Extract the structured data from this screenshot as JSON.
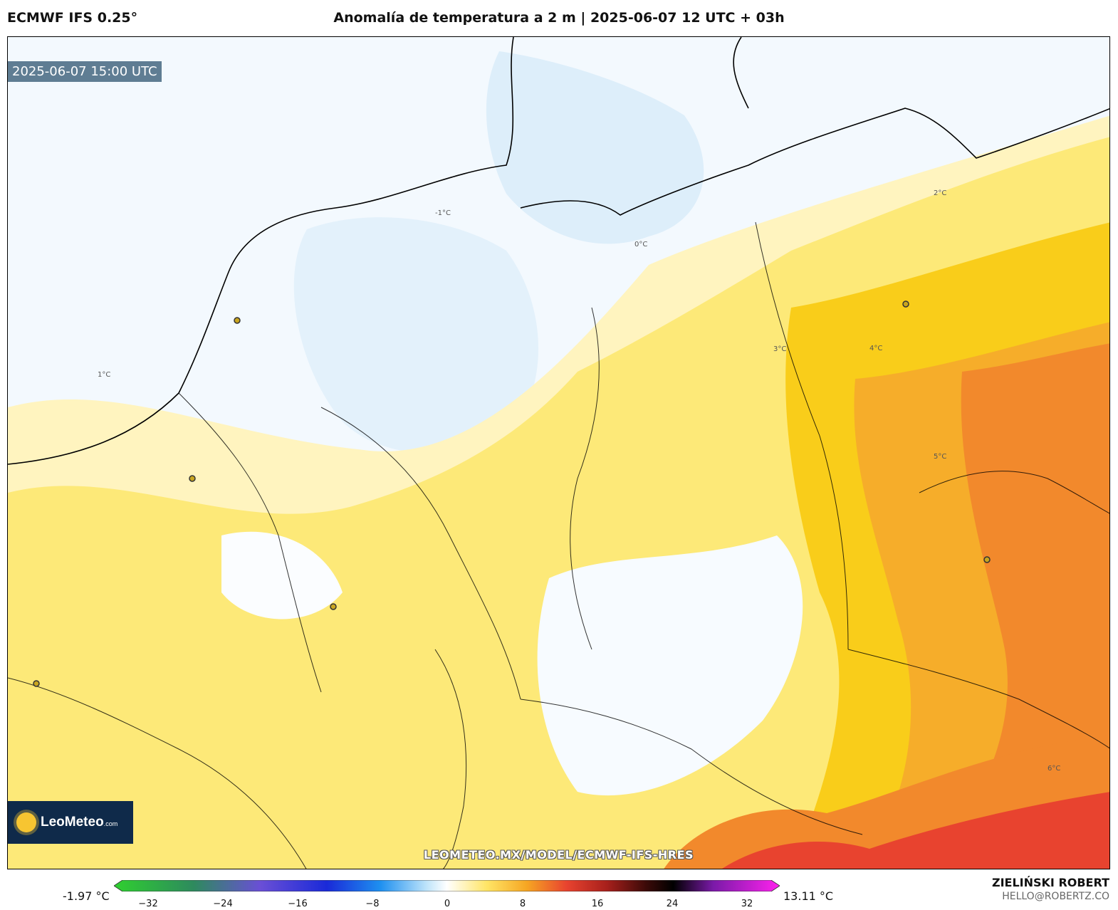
{
  "header": {
    "model": "ECMWF IFS 0.25°",
    "title": "Anomalía de temperatura a 2 m | 2025-06-07 12 UTC + 03h"
  },
  "map": {
    "valid_time": "2025-06-07 15:00 UTC",
    "watermark_url": "LEOMETEO.MX/MODEL/ECMWF-IFS-HRES",
    "logo": {
      "name": "LeoMeteo",
      "suffix": ".com"
    },
    "contour_labels": [
      "0°C",
      "-1°C",
      "1°C",
      "2°C",
      "3°C",
      "4°C",
      "5°C",
      "6°C"
    ],
    "colors": {
      "cold": "#ddeefa",
      "neutral": "#ffffff",
      "warm1": "#fff3b8",
      "warm2": "#fde56a",
      "warm3": "#f9cd1a",
      "warm4": "#f6a623",
      "warm5": "#f07a2a",
      "warm6": "#e8432f"
    }
  },
  "colorbar": {
    "min_label": "-1.97 °C",
    "max_label": "13.11 °C",
    "ticks": [
      "−32",
      "−24",
      "−16",
      "−8",
      "0",
      "8",
      "16",
      "24",
      "32"
    ]
  },
  "footer": {
    "author": "ZIELIŃSKI ROBERT",
    "email": "HELLO@ROBERTZ.CO"
  }
}
